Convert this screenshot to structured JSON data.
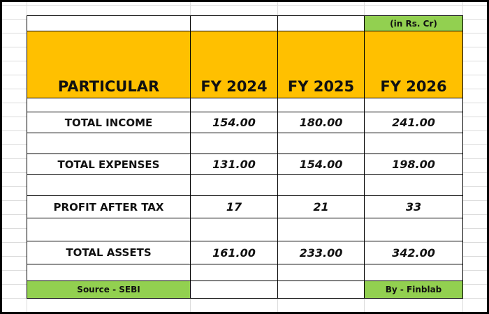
{
  "header": {
    "unit_note": "(in Rs. Cr)",
    "columns": [
      "PARTICULAR",
      "FY 2024",
      "FY 2025",
      "FY 2026"
    ]
  },
  "table": {
    "rows": [
      [
        "TOTAL INCOME",
        "154.00",
        "180.00",
        "241.00"
      ],
      [
        "TOTAL EXPENSES",
        "131.00",
        "154.00",
        "198.00"
      ],
      [
        "PROFIT AFTER TAX",
        "17",
        "21",
        "33"
      ],
      [
        "TOTAL ASSETS",
        "161.00",
        "233.00",
        "342.00"
      ]
    ]
  },
  "footer": {
    "source": "Source - SEBI",
    "credit": "By - Finblab"
  }
}
